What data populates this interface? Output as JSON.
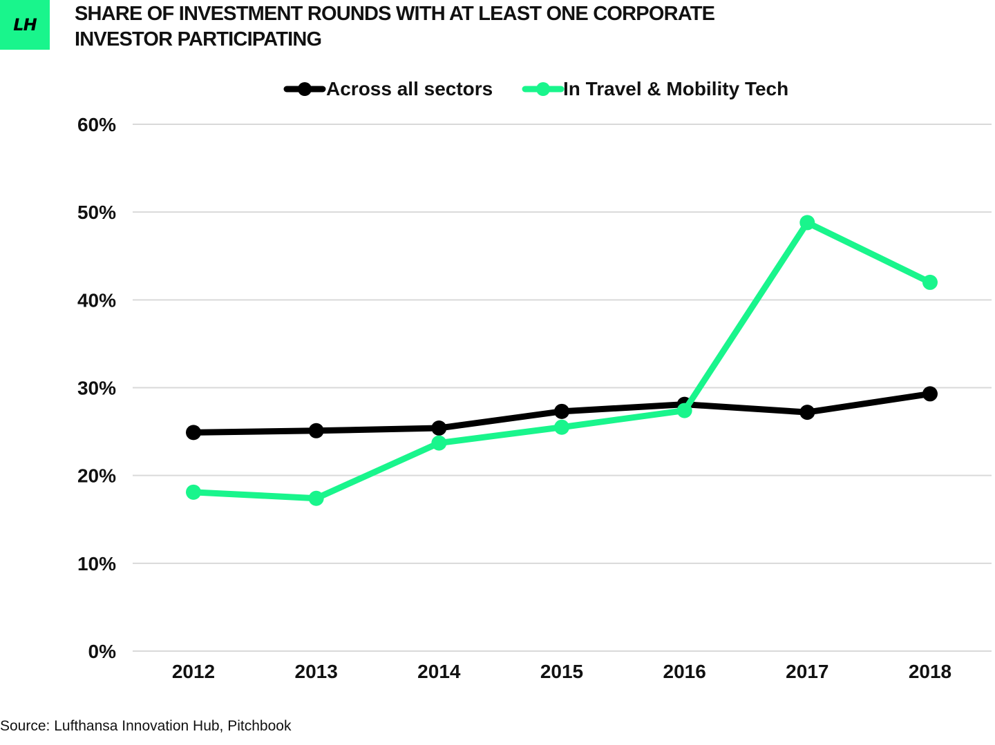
{
  "header": {
    "logo_text": "LH",
    "title_lines": [
      "SHARE OF INVESTMENT ROUNDS WITH AT LEAST ONE CORPORATE",
      "INVESTOR PARTICIPATING"
    ]
  },
  "source": "Source: Lufthansa Innovation Hub, Pitchbook",
  "colors": {
    "brand": "#19f58c",
    "series_all": "#000000",
    "series_travel": "#19f58c",
    "grid": "#d9d9d9"
  },
  "chart_data": {
    "type": "line",
    "title": "SHARE OF INVESTMENT ROUNDS WITH AT LEAST ONE CORPORATE INVESTOR PARTICIPATING",
    "categories": [
      "2012",
      "2013",
      "2014",
      "2015",
      "2016",
      "2017",
      "2018"
    ],
    "series": [
      {
        "name": "Across all sectors",
        "color": "#000000",
        "values": [
          0.249,
          0.251,
          0.254,
          0.273,
          0.281,
          0.272,
          0.293
        ]
      },
      {
        "name": "In Travel & Mobility Tech",
        "color": "#19f58c",
        "values": [
          0.181,
          0.174,
          0.237,
          0.255,
          0.274,
          0.488,
          0.42
        ]
      }
    ],
    "ylim": [
      0,
      0.6
    ],
    "yticks": [
      0,
      0.1,
      0.2,
      0.3,
      0.4,
      0.5,
      0.6
    ],
    "ytick_labels": [
      "0%",
      "10%",
      "20%",
      "30%",
      "40%",
      "50%",
      "60%"
    ],
    "grid": true,
    "legend": "top-center",
    "xlabel": "",
    "ylabel": ""
  }
}
